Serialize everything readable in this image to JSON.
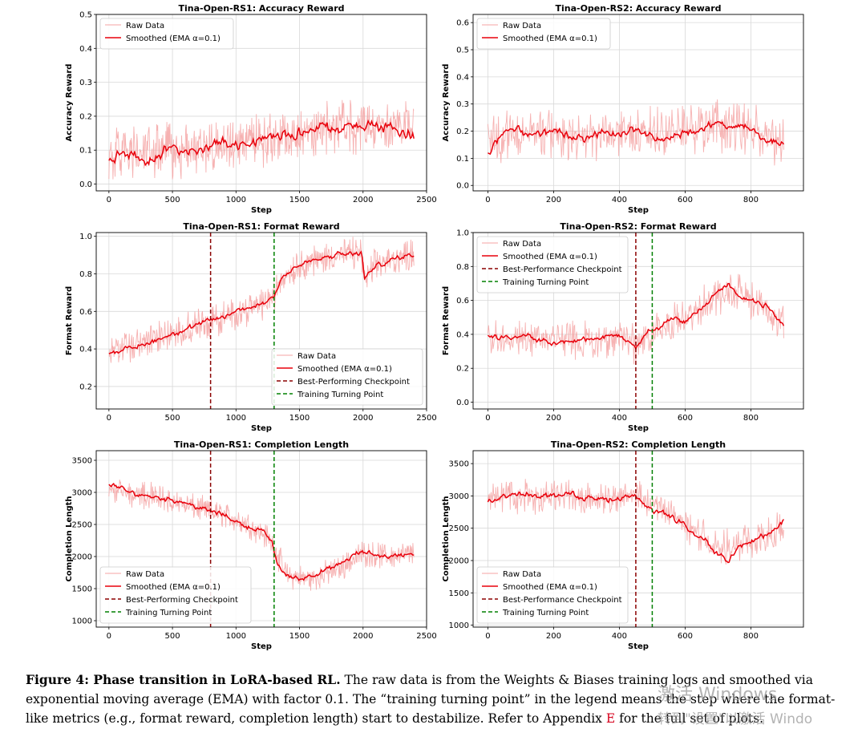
{
  "figure": {
    "caption_label": "Figure 4: Phase transition in LoRA-based RL.",
    "caption_text_1": " The raw data is from the Weights & Biases training logs and smoothed via exponential moving average (EMA) with factor 0.1.  The “training turning point” in the legend means the step where the format-like metrics (e.g., format reward, completion length) start to destabilize. Refer to Appendix ",
    "caption_appendix": "E",
    "caption_text_2": " for the full set of plots."
  },
  "watermark": {
    "line1": "激活 Windows",
    "line2": "转到\"设置\"以激活 Windo"
  },
  "colors": {
    "raw": "#f4a3a3",
    "smoothed": "#e8000b",
    "best": "#8b0000",
    "turning": "#008000",
    "grid": "#d9d9d9"
  },
  "chart_data": [
    {
      "id": "rs1-acc",
      "type": "line",
      "title": "Tina-Open-RS1: Accuracy Reward",
      "xlabel": "Step",
      "ylabel": "Accuracy Reward",
      "xlim": [
        -100,
        2500
      ],
      "ylim": [
        -0.02,
        0.5
      ],
      "xticks": [
        0,
        500,
        1000,
        1500,
        2000,
        2500
      ],
      "yticks": [
        0.0,
        0.1,
        0.2,
        0.3,
        0.4,
        0.5
      ],
      "ytick_labels": [
        "0.0",
        "0.1",
        "0.2",
        "0.3",
        "0.4",
        "0.5"
      ],
      "series": [
        {
          "name": "Raw Data",
          "style": "raw",
          "noise": 0.09,
          "min": 0.0,
          "max": 0.48,
          "x": [
            0,
            300,
            600,
            900,
            1200,
            1500,
            1800,
            2100,
            2400
          ],
          "y": [
            0.09,
            0.09,
            0.1,
            0.12,
            0.13,
            0.15,
            0.17,
            0.17,
            0.18
          ]
        },
        {
          "name": "Smoothed (EMA α=0.1)",
          "style": "smoothed",
          "noise": 0.018,
          "x": [
            0,
            150,
            300,
            450,
            600,
            750,
            900,
            1050,
            1200,
            1350,
            1500,
            1650,
            1800,
            1950,
            2100,
            2250,
            2400
          ],
          "y": [
            0.08,
            0.09,
            0.07,
            0.1,
            0.1,
            0.11,
            0.12,
            0.12,
            0.13,
            0.14,
            0.15,
            0.16,
            0.17,
            0.17,
            0.17,
            0.16,
            0.14
          ]
        }
      ],
      "vlines": [],
      "legend": {
        "position": "top-left",
        "entries": [
          {
            "label": "Raw Data",
            "style": "raw"
          },
          {
            "label": "Smoothed (EMA α=0.1)",
            "style": "smoothed"
          }
        ]
      }
    },
    {
      "id": "rs2-acc",
      "type": "line",
      "title": "Tina-Open-RS2: Accuracy Reward",
      "xlabel": "Step",
      "ylabel": "Accuracy Reward",
      "xlim": [
        -45,
        960
      ],
      "ylim": [
        -0.02,
        0.63
      ],
      "xticks": [
        0,
        200,
        400,
        600,
        800
      ],
      "yticks": [
        0.0,
        0.1,
        0.2,
        0.3,
        0.4,
        0.5,
        0.6
      ],
      "ytick_labels": [
        "0.0",
        "0.1",
        "0.2",
        "0.3",
        "0.4",
        "0.5",
        "0.6"
      ],
      "series": [
        {
          "name": "Raw Data",
          "style": "raw",
          "noise": 0.11,
          "min": 0.0,
          "max": 0.62,
          "x": [
            0,
            100,
            200,
            300,
            400,
            500,
            600,
            700,
            800,
            900
          ],
          "y": [
            0.17,
            0.19,
            0.19,
            0.18,
            0.19,
            0.19,
            0.2,
            0.22,
            0.2,
            0.16
          ]
        },
        {
          "name": "Smoothed (EMA α=0.1)",
          "style": "smoothed",
          "noise": 0.015,
          "x": [
            0,
            50,
            100,
            150,
            200,
            250,
            300,
            350,
            400,
            450,
            500,
            550,
            600,
            650,
            700,
            750,
            800,
            850,
            900
          ],
          "y": [
            0.12,
            0.19,
            0.2,
            0.18,
            0.2,
            0.18,
            0.17,
            0.19,
            0.19,
            0.2,
            0.18,
            0.17,
            0.19,
            0.21,
            0.23,
            0.22,
            0.21,
            0.16,
            0.15
          ]
        }
      ],
      "vlines": [],
      "legend": {
        "position": "top-left",
        "entries": [
          {
            "label": "Raw Data",
            "style": "raw"
          },
          {
            "label": "Smoothed (EMA α=0.1)",
            "style": "smoothed"
          }
        ]
      }
    },
    {
      "id": "rs1-fmt",
      "type": "line",
      "title": "Tina-Open-RS1: Format Reward",
      "xlabel": "Step",
      "ylabel": "Format Reward",
      "xlim": [
        -100,
        2500
      ],
      "ylim": [
        0.08,
        1.02
      ],
      "xticks": [
        0,
        500,
        1000,
        1500,
        2000,
        2500
      ],
      "yticks": [
        0.2,
        0.4,
        0.6,
        0.8,
        1.0
      ],
      "ytick_labels": [
        "0.2",
        "0.4",
        "0.6",
        "0.8",
        "1.0"
      ],
      "series": [
        {
          "name": "Raw Data",
          "style": "raw",
          "noise": 0.1,
          "min": 0.1,
          "max": 1.0,
          "x": [
            0,
            300,
            600,
            900,
            1200,
            1300,
            1350,
            1500,
            1800,
            1990,
            2010,
            2100,
            2400
          ],
          "y": [
            0.38,
            0.44,
            0.5,
            0.57,
            0.64,
            0.68,
            0.77,
            0.85,
            0.9,
            0.91,
            0.76,
            0.85,
            0.91
          ]
        },
        {
          "name": "Smoothed (EMA α=0.1)",
          "style": "smoothed",
          "noise": 0.015,
          "x": [
            0,
            150,
            300,
            450,
            600,
            750,
            900,
            1050,
            1200,
            1300,
            1350,
            1450,
            1600,
            1800,
            1990,
            2010,
            2100,
            2250,
            2400
          ],
          "y": [
            0.38,
            0.4,
            0.43,
            0.47,
            0.5,
            0.54,
            0.57,
            0.61,
            0.64,
            0.68,
            0.78,
            0.83,
            0.87,
            0.9,
            0.91,
            0.77,
            0.84,
            0.88,
            0.91
          ]
        }
      ],
      "vlines": [
        {
          "x": 800,
          "style": "best",
          "label": "Best-Performing Checkpoint"
        },
        {
          "x": 1300,
          "style": "turning",
          "label": "Training Turning Point"
        }
      ],
      "legend": {
        "position": "lower-right",
        "entries": [
          {
            "label": "Raw Data",
            "style": "raw"
          },
          {
            "label": "Smoothed (EMA α=0.1)",
            "style": "smoothed"
          },
          {
            "label": "Best-Performing Checkpoint",
            "style": "best"
          },
          {
            "label": "Training Turning Point",
            "style": "turning"
          }
        ]
      }
    },
    {
      "id": "rs2-fmt",
      "type": "line",
      "title": "Tina-Open-RS2: Format Reward",
      "xlabel": "Step",
      "ylabel": "Format Reward",
      "xlim": [
        -45,
        960
      ],
      "ylim": [
        -0.04,
        1.0
      ],
      "xticks": [
        0,
        200,
        400,
        600,
        800
      ],
      "yticks": [
        0.0,
        0.2,
        0.4,
        0.6,
        0.8,
        1.0
      ],
      "ytick_labels": [
        "0.0",
        "0.2",
        "0.4",
        "0.6",
        "0.8",
        "1.0"
      ],
      "series": [
        {
          "name": "Raw Data",
          "style": "raw",
          "noise": 0.13,
          "min": 0.02,
          "max": 0.97,
          "x": [
            0,
            100,
            200,
            300,
            400,
            450,
            500,
            600,
            700,
            750,
            800,
            900
          ],
          "y": [
            0.38,
            0.38,
            0.36,
            0.36,
            0.38,
            0.33,
            0.42,
            0.5,
            0.63,
            0.66,
            0.6,
            0.48
          ]
        },
        {
          "name": "Smoothed (EMA α=0.1)",
          "style": "smoothed",
          "noise": 0.015,
          "x": [
            0,
            50,
            100,
            150,
            200,
            250,
            300,
            350,
            400,
            450,
            480,
            520,
            550,
            600,
            650,
            700,
            730,
            760,
            800,
            850,
            900
          ],
          "y": [
            0.39,
            0.38,
            0.4,
            0.37,
            0.35,
            0.36,
            0.37,
            0.38,
            0.39,
            0.31,
            0.42,
            0.43,
            0.49,
            0.47,
            0.56,
            0.66,
            0.7,
            0.62,
            0.6,
            0.57,
            0.44
          ]
        }
      ],
      "vlines": [
        {
          "x": 450,
          "style": "best",
          "label": "Best-Performance Checkpoint"
        },
        {
          "x": 500,
          "style": "turning",
          "label": "Training Turning Point"
        }
      ],
      "legend": {
        "position": "top-left",
        "entries": [
          {
            "label": "Raw Data",
            "style": "raw"
          },
          {
            "label": "Smoothed (EMA α=0.1)",
            "style": "smoothed"
          },
          {
            "label": "Best-Performance Checkpoint",
            "style": "best"
          },
          {
            "label": "Training Turning Point",
            "style": "turning"
          }
        ]
      }
    },
    {
      "id": "rs1-len",
      "type": "line",
      "title": "Tina-Open-RS1: Completion Length",
      "xlabel": "Step",
      "ylabel": "Completion Length",
      "xlim": [
        -100,
        2500
      ],
      "ylim": [
        900,
        3650
      ],
      "xticks": [
        0,
        500,
        1000,
        1500,
        2000,
        2500
      ],
      "yticks": [
        1000,
        1500,
        2000,
        2500,
        3000,
        3500
      ],
      "ytick_labels": [
        "1000",
        "1500",
        "2000",
        "2500",
        "3000",
        "3500"
      ],
      "series": [
        {
          "name": "Raw Data",
          "style": "raw",
          "noise": 240,
          "min": 1000,
          "max": 3550,
          "x": [
            0,
            300,
            600,
            900,
            1100,
            1250,
            1300,
            1400,
            1600,
            1800,
            2000,
            2200,
            2400
          ],
          "y": [
            3050,
            2950,
            2800,
            2650,
            2500,
            2300,
            2150,
            1700,
            1650,
            1800,
            2050,
            2000,
            2050
          ]
        },
        {
          "name": "Smoothed (EMA α=0.1)",
          "style": "smoothed",
          "noise": 40,
          "x": [
            0,
            150,
            300,
            450,
            600,
            750,
            900,
            1050,
            1200,
            1280,
            1320,
            1400,
            1500,
            1650,
            1800,
            1950,
            2050,
            2200,
            2400
          ],
          "y": [
            3150,
            3000,
            2950,
            2900,
            2850,
            2730,
            2650,
            2500,
            2400,
            2250,
            1900,
            1700,
            1650,
            1750,
            1850,
            2050,
            2050,
            2000,
            2050
          ]
        }
      ],
      "vlines": [
        {
          "x": 800,
          "style": "best",
          "label": "Best-Performing Checkpoint"
        },
        {
          "x": 1300,
          "style": "turning",
          "label": "Training Turning Point"
        }
      ],
      "legend": {
        "position": "lower-left",
        "entries": [
          {
            "label": "Raw Data",
            "style": "raw"
          },
          {
            "label": "Smoothed (EMA α=0.1)",
            "style": "smoothed"
          },
          {
            "label": "Best-Performing Checkpoint",
            "style": "best"
          },
          {
            "label": "Training Turning Point",
            "style": "turning"
          }
        ]
      }
    },
    {
      "id": "rs2-len",
      "type": "line",
      "title": "Tina-Open-RS2: Completion Length",
      "xlabel": "Step",
      "ylabel": "Completion Length",
      "xlim": [
        -45,
        960
      ],
      "ylim": [
        970,
        3700
      ],
      "xticks": [
        0,
        200,
        400,
        600,
        800
      ],
      "yticks": [
        1000,
        1500,
        2000,
        2500,
        3000,
        3500
      ],
      "ytick_labels": [
        "1000",
        "1500",
        "2000",
        "2500",
        "3000",
        "3500"
      ],
      "series": [
        {
          "name": "Raw Data",
          "style": "raw",
          "noise": 320,
          "min": 1050,
          "max": 3600,
          "x": [
            0,
            100,
            200,
            300,
            400,
            450,
            500,
            550,
            600,
            700,
            750,
            800,
            900
          ],
          "y": [
            2950,
            3000,
            3000,
            2950,
            2950,
            3000,
            2850,
            2750,
            2550,
            2200,
            2200,
            2300,
            2500
          ]
        },
        {
          "name": "Smoothed (EMA α=0.1)",
          "style": "smoothed",
          "noise": 45,
          "x": [
            0,
            50,
            100,
            150,
            200,
            250,
            300,
            350,
            400,
            450,
            500,
            550,
            600,
            650,
            700,
            730,
            760,
            800,
            850,
            900
          ],
          "y": [
            2900,
            3000,
            3050,
            3000,
            3000,
            3050,
            2950,
            2950,
            2950,
            3000,
            2800,
            2700,
            2550,
            2350,
            2100,
            2000,
            2200,
            2300,
            2400,
            2600
          ]
        }
      ],
      "vlines": [
        {
          "x": 450,
          "style": "best",
          "label": "Best-Performance Checkpoint"
        },
        {
          "x": 500,
          "style": "turning",
          "label": "Training Turning Point"
        }
      ],
      "legend": {
        "position": "lower-left",
        "entries": [
          {
            "label": "Raw Data",
            "style": "raw"
          },
          {
            "label": "Smoothed (EMA α=0.1)",
            "style": "smoothed"
          },
          {
            "label": "Best-Performance Checkpoint",
            "style": "best"
          },
          {
            "label": "Training Turning Point",
            "style": "turning"
          }
        ]
      }
    }
  ]
}
